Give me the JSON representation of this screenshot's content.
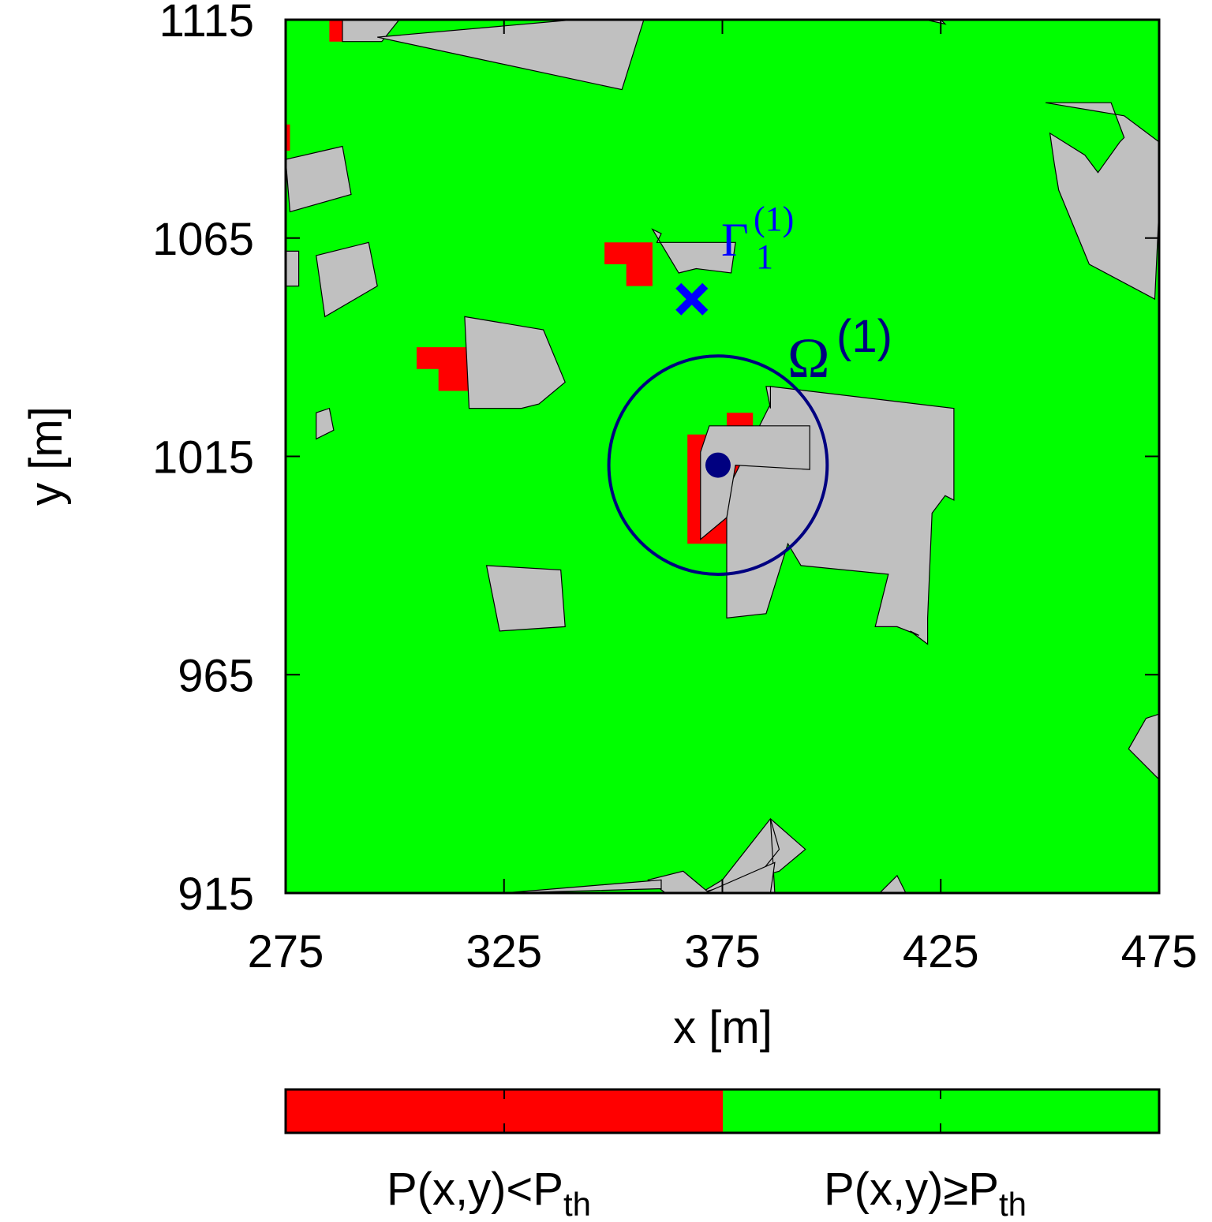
{
  "chart_data": {
    "type": "heatmap",
    "title": "",
    "xlabel": "x [m]",
    "ylabel": "y [m]",
    "xlim": [
      275,
      475
    ],
    "ylim": [
      915,
      1115
    ],
    "xticks": [
      275,
      325,
      375,
      425,
      475
    ],
    "yticks": [
      915,
      965,
      1015,
      1065,
      1115
    ],
    "grid": false,
    "background_class": "P(x,y)≥Pth",
    "colors": {
      "above": "#00ff00",
      "below": "#ff0000",
      "building": "#c0c0c0",
      "circle": "#000080",
      "marker": "#0000ff"
    },
    "legend": {
      "placement": "bottom",
      "entries": [
        {
          "color": "#ff0000",
          "base": "P(x,y)<P",
          "sub": "th"
        },
        {
          "color": "#00ff00",
          "base": "P(x,y)≥P",
          "sub": "th"
        }
      ]
    },
    "buildings": [
      [
        [
          288,
          1115
        ],
        [
          301,
          1115
        ],
        [
          297,
          1110
        ],
        [
          288,
          1110
        ]
      ],
      [
        [
          296,
          1111
        ],
        [
          341,
          1115
        ],
        [
          357,
          1115
        ],
        [
          352,
          1099
        ],
        [
          296,
          1111
        ]
      ],
      [
        [
          425,
          1115
        ],
        [
          417,
          1116
        ],
        [
          426,
          1114
        ]
      ],
      [
        [
          275,
          1083
        ],
        [
          288,
          1086
        ],
        [
          290,
          1075
        ],
        [
          276,
          1071
        ],
        [
          275,
          1083
        ]
      ],
      [
        [
          275,
          1062
        ],
        [
          278,
          1062
        ],
        [
          278,
          1054
        ],
        [
          275,
          1054
        ]
      ],
      [
        [
          282,
          1061
        ],
        [
          294,
          1064
        ],
        [
          296,
          1054
        ],
        [
          284,
          1047
        ]
      ],
      [
        [
          359,
          1067
        ],
        [
          361,
          1066
        ],
        [
          360,
          1064
        ],
        [
          378,
          1064
        ],
        [
          377,
          1057
        ],
        [
          369,
          1058
        ],
        [
          365,
          1057
        ],
        [
          359,
          1067
        ]
      ],
      [
        [
          316,
          1047
        ],
        [
          334,
          1044
        ],
        [
          339,
          1032
        ],
        [
          333,
          1027
        ],
        [
          329,
          1026
        ],
        [
          317,
          1026
        ],
        [
          316,
          1047
        ]
      ],
      [
        [
          282,
          1025
        ],
        [
          285,
          1026
        ],
        [
          286,
          1021
        ],
        [
          282,
          1019
        ]
      ],
      [
        [
          449,
          1096
        ],
        [
          464,
          1096
        ],
        [
          467,
          1088
        ],
        [
          466,
          1087
        ],
        [
          461,
          1080
        ],
        [
          458,
          1084
        ],
        [
          450,
          1089
        ],
        [
          451,
          1082
        ],
        [
          452,
          1076
        ],
        [
          459,
          1059
        ],
        [
          474,
          1051
        ],
        [
          475,
          1072
        ],
        [
          475,
          1087
        ],
        [
          467,
          1093
        ]
      ],
      [
        [
          386,
          1031
        ],
        [
          428,
          1026
        ],
        [
          428,
          1005
        ],
        [
          426,
          1006
        ],
        [
          423,
          1002
        ],
        [
          422,
          978
        ],
        [
          422,
          972
        ],
        [
          418,
          975
        ],
        [
          420,
          974
        ],
        [
          415,
          976
        ],
        [
          410,
          976
        ],
        [
          413,
          988
        ],
        [
          393,
          990
        ],
        [
          390,
          995
        ],
        [
          385,
          979
        ],
        [
          376,
          978
        ],
        [
          376,
          987
        ],
        [
          376,
          1007
        ],
        [
          386,
          1027
        ],
        [
          386,
          1031
        ]
      ],
      [
        [
          385,
          1031
        ],
        [
          386,
          1031
        ],
        [
          386,
          1026
        ]
      ],
      [
        [
          372,
          1022
        ],
        [
          395,
          1022
        ],
        [
          395,
          1012
        ],
        [
          378,
          1013
        ],
        [
          376,
          1001
        ],
        [
          370,
          996
        ],
        [
          370,
          1016
        ],
        [
          372,
          1022
        ]
      ],
      [
        [
          321,
          990
        ],
        [
          324,
          975
        ],
        [
          339,
          976
        ],
        [
          338,
          989
        ]
      ],
      [
        [
          472,
          955
        ],
        [
          475,
          956
        ],
        [
          475,
          941
        ],
        [
          468,
          948
        ]
      ],
      [
        [
          388,
          920
        ],
        [
          394,
          925
        ],
        [
          386,
          932
        ],
        [
          375,
          918
        ],
        [
          370,
          915
        ]
      ],
      [
        [
          370,
          915
        ],
        [
          380,
          915
        ],
        [
          388,
          925
        ],
        [
          386,
          932
        ],
        [
          387,
          915
        ]
      ],
      [
        [
          362,
          915
        ],
        [
          372,
          915
        ],
        [
          366,
          920
        ],
        [
          358,
          918
        ]
      ],
      [
        [
          371,
          915
        ],
        [
          386,
          915
        ],
        [
          387,
          922
        ]
      ],
      [
        [
          411,
          915
        ],
        [
          417,
          915
        ],
        [
          415,
          919
        ]
      ],
      [
        [
          325,
          915
        ],
        [
          361,
          916
        ],
        [
          361,
          918
        ]
      ]
    ],
    "red_regions": [
      [
        [
          285,
          1115
        ],
        [
          296,
          1115
        ],
        [
          296,
          1110
        ],
        [
          285,
          1110
        ]
      ],
      [
        [
          275,
          1091
        ],
        [
          276,
          1091
        ],
        [
          276,
          1085
        ],
        [
          275,
          1085
        ]
      ],
      [
        [
          348,
          1064
        ],
        [
          359,
          1064
        ],
        [
          359,
          1054
        ],
        [
          353,
          1054
        ],
        [
          353,
          1059
        ],
        [
          348,
          1059
        ]
      ],
      [
        [
          305,
          1040
        ],
        [
          317,
          1040
        ],
        [
          317,
          1030
        ],
        [
          310,
          1030
        ],
        [
          310,
          1035
        ],
        [
          305,
          1035
        ]
      ],
      [
        [
          365,
          1020
        ],
        [
          376,
          1020
        ],
        [
          376,
          1025
        ],
        [
          382,
          1025
        ],
        [
          382,
          1015
        ],
        [
          393,
          1015
        ],
        [
          393,
          1005
        ],
        [
          379,
          1005
        ],
        [
          376,
          995
        ],
        [
          367,
          995
        ],
        [
          367,
          1020
        ]
      ]
    ],
    "circle": {
      "label": "Ω",
      "superscript": "(1)",
      "center": [
        374,
        1013
      ],
      "radius": 25
    },
    "marker": {
      "symbol": "✖",
      "label": "Γ",
      "subscript": "1",
      "superscript": "(1)",
      "position": [
        368,
        1051
      ]
    }
  }
}
